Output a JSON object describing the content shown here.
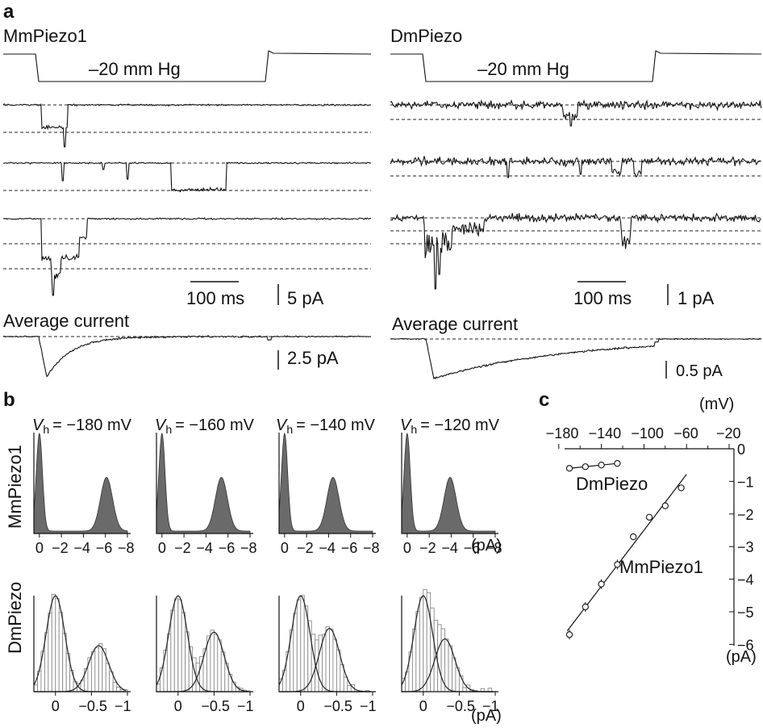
{
  "panel_a": {
    "letter": "a",
    "left": {
      "title": "MmPiezo1",
      "stim_label": "–20 mm Hg",
      "scale_time": "100 ms",
      "scale_current": "5 pA",
      "avg_label": "Average current",
      "avg_scale": "2.5 pA"
    },
    "right": {
      "title": "DmPiezo",
      "stim_label": "–20 mm Hg",
      "scale_time": "100 ms",
      "scale_current": "1 pA",
      "avg_label": "Average current",
      "avg_scale": "0.5 pA"
    }
  },
  "panel_b": {
    "letter": "b",
    "row_labels": [
      "MmPiezo1",
      "DmPiezo"
    ],
    "vh_prefix": "V",
    "vh_sub": "h",
    "voltages": [
      "= −180 mV",
      "= −160 mV",
      "= −140 mV",
      "= −120 mV"
    ],
    "top_ticks": [
      "0",
      "−2",
      "−4",
      "−6",
      "−8"
    ],
    "bottom_ticks": [
      "0",
      "−0.5",
      "−1"
    ],
    "unit": "(pA)"
  },
  "panel_c": {
    "letter": "c",
    "x_unit": "(mV)",
    "y_unit": "(pA)",
    "x_ticks": [
      "−180",
      "−140",
      "−100",
      "−60",
      "−20"
    ],
    "y_ticks": [
      "0",
      "−1",
      "−2",
      "−3",
      "−4",
      "−5",
      "−6"
    ],
    "series_labels": [
      "DmPiezo",
      "MmPiezo1"
    ]
  },
  "chart_data": [
    {
      "type": "line",
      "panel": "a",
      "series": [
        {
          "name": "MmPiezo1",
          "stimulus": "–20 mm Hg"
        },
        {
          "name": "DmPiezo",
          "stimulus": "–20 mm Hg"
        }
      ],
      "scale_bars": {
        "time": "100 ms",
        "current": [
          "5 pA",
          "2.5 pA",
          "1 pA",
          "0.5 pA"
        ]
      }
    },
    {
      "type": "bar",
      "panel": "b",
      "rows": [
        "MmPiezo1",
        "DmPiezo"
      ],
      "holding_potentials_mV": [
        -180,
        -160,
        -140,
        -120
      ],
      "MmPiezo1_open_peak_pA": [
        -6.1,
        -5.4,
        -4.4,
        -3.9
      ],
      "DmPiezo_open_peak_pA": [
        -0.6,
        -0.5,
        -0.4,
        -0.3
      ],
      "closed_peak_pA": 0,
      "xlim_MmPiezo1": [
        0.5,
        -8
      ],
      "xlim_DmPiezo": [
        0.3,
        -1
      ]
    },
    {
      "type": "scatter",
      "panel": "c",
      "xlabel": "(mV)",
      "ylabel": "(pA)",
      "xlim": [
        -180,
        0
      ],
      "ylim": [
        -6,
        0
      ],
      "series": [
        {
          "name": "DmPiezo",
          "x": [
            -170,
            -155,
            -140,
            -125
          ],
          "y": [
            -0.6,
            -0.55,
            -0.5,
            -0.45
          ]
        },
        {
          "name": "MmPiezo1",
          "x": [
            -170,
            -155,
            -140,
            -125,
            -110,
            -95,
            -80,
            -65
          ],
          "y": [
            -5.7,
            -4.85,
            -4.15,
            -3.55,
            -2.7,
            -2.1,
            -1.75,
            -1.2
          ]
        }
      ]
    }
  ]
}
